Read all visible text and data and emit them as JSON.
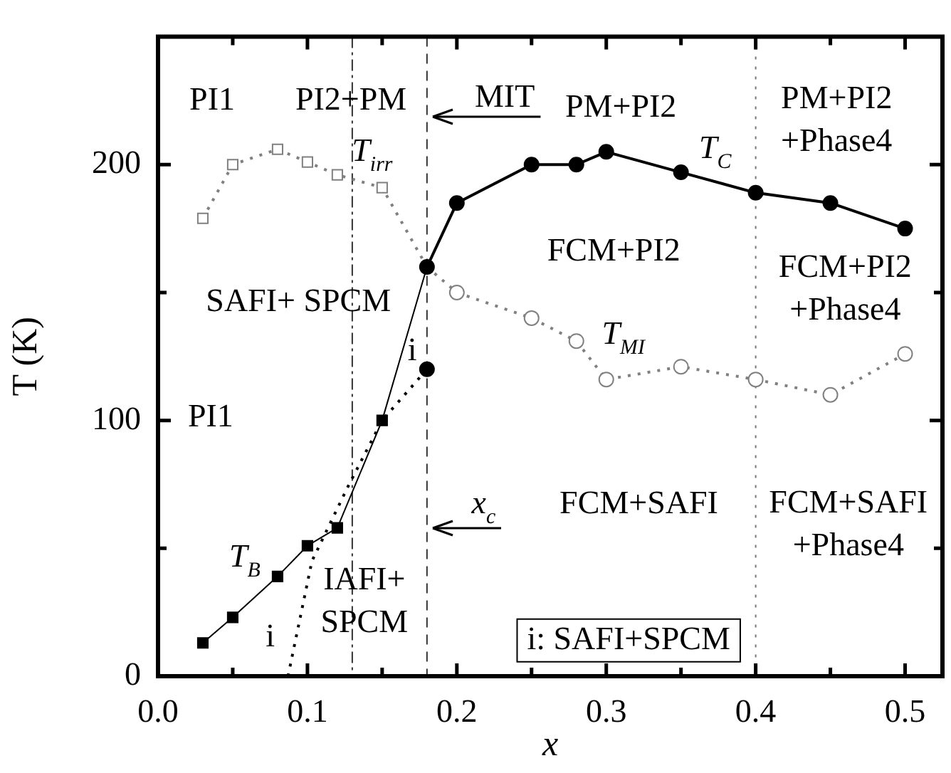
{
  "chart_data": {
    "type": "line",
    "xlabel": "x",
    "ylabel": "T (K)",
    "xlim": [
      0,
      0.525
    ],
    "ylim": [
      0,
      250
    ],
    "xticks": [
      {
        "value": 0,
        "label": "0.0"
      },
      {
        "value": 0.05,
        "label": null
      },
      {
        "value": 0.1,
        "label": "0.1"
      },
      {
        "value": 0.15,
        "label": null
      },
      {
        "value": 0.2,
        "label": "0.2"
      },
      {
        "value": 0.25,
        "label": null
      },
      {
        "value": 0.3,
        "label": "0.3"
      },
      {
        "value": 0.35,
        "label": null
      },
      {
        "value": 0.4,
        "label": "0.4"
      },
      {
        "value": 0.45,
        "label": null
      },
      {
        "value": 0.5,
        "label": "0.5"
      }
    ],
    "yticks": [
      0,
      {
        "value": 50,
        "label": null
      },
      100,
      {
        "value": 150,
        "label": null
      },
      200
    ],
    "grid": false,
    "legend": false,
    "series": [
      {
        "name": "T$_{irr}$",
        "color": "#808080",
        "marker": "square",
        "line_style": "dotted",
        "x": [
          0.03,
          0.05,
          0.08,
          0.1,
          0.12,
          0.15,
          0.18
        ],
        "values": [
          179,
          200,
          206,
          201,
          196,
          191,
          160
        ]
      },
      {
        "name": "T$_{MI}$",
        "color": "#808080",
        "marker": "circle",
        "line_style": "dotted",
        "x": [
          0.18,
          0.2,
          0.25,
          0.28,
          0.3,
          0.35,
          0.4,
          0.45,
          0.5
        ],
        "values": [
          160,
          150,
          140,
          131,
          116,
          121,
          116,
          110,
          126
        ]
      },
      {
        "name": "T$_{C}$",
        "color": "#000000",
        "marker": "circle",
        "line_style": "solid",
        "x": [
          0.18,
          0.2,
          0.25,
          0.28,
          0.3,
          0.35,
          0.4,
          0.45,
          0.5
        ],
        "values": [
          160,
          185,
          200,
          200,
          205,
          197,
          189,
          185,
          175
        ]
      },
      {
        "color": "#000000",
        "marker": "none",
        "line_style": "dotted",
        "x": [
          0.087,
          0.103,
          0.127,
          0.15,
          0.18
        ],
        "values": [
          0,
          45,
          74,
          100,
          120
        ]
      },
      {
        "type": "scatter",
        "color": "#000000",
        "marker": "circle",
        "x": [
          0.18
        ],
        "values": [
          120
        ]
      },
      {
        "name": "T$_{B}$",
        "color": "#000000",
        "marker": "square",
        "line_style": "solid",
        "x": [
          0.03,
          0.05,
          0.08,
          0.1,
          0.12,
          0.15,
          0.18
        ],
        "values": [
          13,
          23,
          39,
          51,
          58,
          100,
          160
        ]
      }
    ],
    "ref_lines": [
      {
        "axis": "x",
        "value": 0.13,
        "line_style": "dashdot",
        "color": "#333333"
      },
      {
        "axis": "x",
        "value": 0.18,
        "line_style": "dashed",
        "color": "#333333"
      },
      {
        "axis": "x",
        "value": 0.4,
        "line_style": "dotted",
        "color": "#777777"
      }
    ],
    "annotations": [
      "PI1",
      "PI2+PM",
      "MIT",
      "PM+PI2",
      "PM+PI2\n+Phase4",
      "FCM+PI2",
      "FCM+PI2\n+Phase4",
      "SAFI+ SPCM",
      "i",
      "PI1",
      "i",
      "IAFI+\nSPCM",
      "x$_{c}$",
      "FCM+SAFI",
      "FCM+SAFI\n+Phase4",
      "i: SAFI+SPCM"
    ]
  }
}
